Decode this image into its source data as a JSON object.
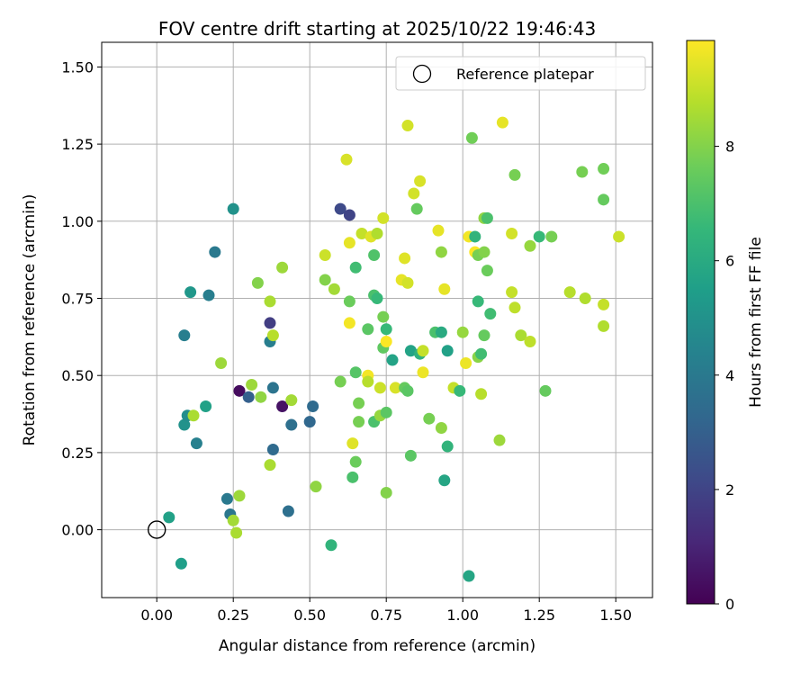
{
  "chart_data": {
    "type": "scatter",
    "title": "FOV centre drift starting at 2025/10/22 19:46:43",
    "xlabel": "Angular distance from reference (arcmin)",
    "ylabel": "Rotation from reference (arcmin)",
    "xlim": [
      -0.18,
      1.62
    ],
    "ylim": [
      -0.22,
      1.58
    ],
    "xticks": [
      0.0,
      0.25,
      0.5,
      0.75,
      1.0,
      1.25,
      1.5
    ],
    "yticks": [
      0.0,
      0.25,
      0.5,
      0.75,
      1.0,
      1.25,
      1.5
    ],
    "xtick_labels": [
      "0.00",
      "0.25",
      "0.50",
      "0.75",
      "1.00",
      "1.25",
      "1.50"
    ],
    "ytick_labels": [
      "0.00",
      "0.25",
      "0.50",
      "0.75",
      "1.00",
      "1.25",
      "1.50"
    ],
    "grid": true,
    "legend": {
      "label": "Reference platepar",
      "position": "top-right"
    },
    "reference": {
      "x": 0.0,
      "y": 0.0,
      "label": "Reference platepar"
    },
    "colorbar": {
      "label": "Hours from first FF file",
      "min": 0,
      "max": 9.85,
      "ticks": [
        0,
        2,
        4,
        6,
        8
      ],
      "colormap": "viridis"
    },
    "points": [
      {
        "x": 0.04,
        "y": 0.04,
        "c": 5.6
      },
      {
        "x": 0.08,
        "y": -0.11,
        "c": 5.5
      },
      {
        "x": 0.09,
        "y": 0.63,
        "c": 4.2
      },
      {
        "x": 0.09,
        "y": 0.34,
        "c": 5.0
      },
      {
        "x": 0.1,
        "y": 0.37,
        "c": 4.8
      },
      {
        "x": 0.11,
        "y": 0.77,
        "c": 5.2
      },
      {
        "x": 0.12,
        "y": 0.37,
        "c": 8.6
      },
      {
        "x": 0.13,
        "y": 0.28,
        "c": 4.3
      },
      {
        "x": 0.16,
        "y": 0.4,
        "c": 5.6
      },
      {
        "x": 0.17,
        "y": 0.76,
        "c": 4.2
      },
      {
        "x": 0.19,
        "y": 0.9,
        "c": 4.0
      },
      {
        "x": 0.21,
        "y": 0.54,
        "c": 8.4
      },
      {
        "x": 0.23,
        "y": 0.1,
        "c": 4.0
      },
      {
        "x": 0.24,
        "y": 0.05,
        "c": 3.9
      },
      {
        "x": 0.25,
        "y": 1.04,
        "c": 5.0
      },
      {
        "x": 0.25,
        "y": 0.03,
        "c": 8.5
      },
      {
        "x": 0.26,
        "y": -0.01,
        "c": 8.6
      },
      {
        "x": 0.27,
        "y": 0.45,
        "c": 0.3
      },
      {
        "x": 0.27,
        "y": 0.11,
        "c": 8.4
      },
      {
        "x": 0.3,
        "y": 0.43,
        "c": 3.0
      },
      {
        "x": 0.31,
        "y": 0.47,
        "c": 8.4
      },
      {
        "x": 0.33,
        "y": 0.8,
        "c": 8.0
      },
      {
        "x": 0.34,
        "y": 0.43,
        "c": 8.2
      },
      {
        "x": 0.37,
        "y": 0.67,
        "c": 1.8
      },
      {
        "x": 0.37,
        "y": 0.61,
        "c": 4.2
      },
      {
        "x": 0.37,
        "y": 0.21,
        "c": 8.6
      },
      {
        "x": 0.37,
        "y": 0.74,
        "c": 8.6
      },
      {
        "x": 0.38,
        "y": 0.63,
        "c": 8.8
      },
      {
        "x": 0.38,
        "y": 0.46,
        "c": 3.8
      },
      {
        "x": 0.38,
        "y": 0.26,
        "c": 3.4
      },
      {
        "x": 0.41,
        "y": 0.4,
        "c": 0.5
      },
      {
        "x": 0.41,
        "y": 0.85,
        "c": 8.4
      },
      {
        "x": 0.43,
        "y": 0.06,
        "c": 3.6
      },
      {
        "x": 0.44,
        "y": 0.42,
        "c": 8.5
      },
      {
        "x": 0.44,
        "y": 0.34,
        "c": 3.6
      },
      {
        "x": 0.5,
        "y": 0.35,
        "c": 3.3
      },
      {
        "x": 0.51,
        "y": 0.4,
        "c": 3.4
      },
      {
        "x": 0.52,
        "y": 0.14,
        "c": 8.2
      },
      {
        "x": 0.55,
        "y": 0.89,
        "c": 9.1
      },
      {
        "x": 0.55,
        "y": 0.81,
        "c": 8.0
      },
      {
        "x": 0.57,
        "y": -0.05,
        "c": 6.4
      },
      {
        "x": 0.58,
        "y": 0.78,
        "c": 8.5
      },
      {
        "x": 0.6,
        "y": 1.04,
        "c": 2.2
      },
      {
        "x": 0.6,
        "y": 0.48,
        "c": 7.8
      },
      {
        "x": 0.62,
        "y": 1.2,
        "c": 9.3
      },
      {
        "x": 0.63,
        "y": 1.02,
        "c": 2.0
      },
      {
        "x": 0.63,
        "y": 0.67,
        "c": 9.7
      },
      {
        "x": 0.63,
        "y": 0.93,
        "c": 9.5
      },
      {
        "x": 0.63,
        "y": 0.74,
        "c": 7.6
      },
      {
        "x": 0.64,
        "y": 0.17,
        "c": 7.0
      },
      {
        "x": 0.64,
        "y": 0.28,
        "c": 9.4
      },
      {
        "x": 0.65,
        "y": 0.85,
        "c": 6.8
      },
      {
        "x": 0.65,
        "y": 0.51,
        "c": 7.2
      },
      {
        "x": 0.65,
        "y": 0.22,
        "c": 7.6
      },
      {
        "x": 0.66,
        "y": 0.41,
        "c": 7.8
      },
      {
        "x": 0.66,
        "y": 0.35,
        "c": 7.8
      },
      {
        "x": 0.67,
        "y": 0.96,
        "c": 9.0
      },
      {
        "x": 0.69,
        "y": 0.65,
        "c": 7.3
      },
      {
        "x": 0.69,
        "y": 0.5,
        "c": 9.7
      },
      {
        "x": 0.69,
        "y": 0.48,
        "c": 8.8
      },
      {
        "x": 0.7,
        "y": 0.95,
        "c": 9.4
      },
      {
        "x": 0.71,
        "y": 0.89,
        "c": 7.1
      },
      {
        "x": 0.71,
        "y": 0.35,
        "c": 7.0
      },
      {
        "x": 0.71,
        "y": 0.76,
        "c": 7.0
      },
      {
        "x": 0.72,
        "y": 0.96,
        "c": 8.7
      },
      {
        "x": 0.72,
        "y": 0.75,
        "c": 6.6
      },
      {
        "x": 0.73,
        "y": 0.46,
        "c": 9.1
      },
      {
        "x": 0.73,
        "y": 0.37,
        "c": 8.3
      },
      {
        "x": 0.74,
        "y": 0.59,
        "c": 7.4
      },
      {
        "x": 0.74,
        "y": 1.01,
        "c": 9.2
      },
      {
        "x": 0.74,
        "y": 0.69,
        "c": 7.8
      },
      {
        "x": 0.75,
        "y": 0.61,
        "c": 9.8
      },
      {
        "x": 0.75,
        "y": 0.38,
        "c": 7.3
      },
      {
        "x": 0.75,
        "y": 0.65,
        "c": 6.6
      },
      {
        "x": 0.75,
        "y": 0.12,
        "c": 8.0
      },
      {
        "x": 0.77,
        "y": 0.55,
        "c": 5.7
      },
      {
        "x": 0.78,
        "y": 0.46,
        "c": 9.3
      },
      {
        "x": 0.8,
        "y": 0.81,
        "c": 9.5
      },
      {
        "x": 0.81,
        "y": 0.88,
        "c": 9.4
      },
      {
        "x": 0.81,
        "y": 0.46,
        "c": 7.5
      },
      {
        "x": 0.82,
        "y": 0.8,
        "c": 9.2
      },
      {
        "x": 0.82,
        "y": 1.31,
        "c": 9.2
      },
      {
        "x": 0.82,
        "y": 0.45,
        "c": 7.3
      },
      {
        "x": 0.83,
        "y": 0.58,
        "c": 5.7
      },
      {
        "x": 0.83,
        "y": 0.24,
        "c": 7.3
      },
      {
        "x": 0.84,
        "y": 1.09,
        "c": 9.2
      },
      {
        "x": 0.85,
        "y": 1.04,
        "c": 7.5
      },
      {
        "x": 0.86,
        "y": 1.13,
        "c": 9.3
      },
      {
        "x": 0.86,
        "y": 0.57,
        "c": 6.3
      },
      {
        "x": 0.87,
        "y": 0.51,
        "c": 9.6
      },
      {
        "x": 0.87,
        "y": 0.58,
        "c": 9.0
      },
      {
        "x": 0.89,
        "y": 0.36,
        "c": 7.8
      },
      {
        "x": 0.91,
        "y": 0.64,
        "c": 7.0
      },
      {
        "x": 0.92,
        "y": 0.97,
        "c": 9.5
      },
      {
        "x": 0.93,
        "y": 0.33,
        "c": 8.2
      },
      {
        "x": 0.93,
        "y": 0.64,
        "c": 6.0
      },
      {
        "x": 0.93,
        "y": 0.9,
        "c": 8.2
      },
      {
        "x": 0.94,
        "y": 0.78,
        "c": 9.5
      },
      {
        "x": 0.94,
        "y": 0.16,
        "c": 5.8
      },
      {
        "x": 0.95,
        "y": 0.58,
        "c": 5.6
      },
      {
        "x": 0.95,
        "y": 0.27,
        "c": 6.4
      },
      {
        "x": 0.97,
        "y": 0.46,
        "c": 9.0
      },
      {
        "x": 0.99,
        "y": 0.45,
        "c": 6.6
      },
      {
        "x": 1.0,
        "y": 0.64,
        "c": 8.3
      },
      {
        "x": 1.01,
        "y": 0.54,
        "c": 9.6
      },
      {
        "x": 1.02,
        "y": 0.95,
        "c": 9.7
      },
      {
        "x": 1.02,
        "y": -0.15,
        "c": 5.8
      },
      {
        "x": 1.03,
        "y": 1.27,
        "c": 7.7
      },
      {
        "x": 1.04,
        "y": 0.95,
        "c": 6.4
      },
      {
        "x": 1.04,
        "y": 0.9,
        "c": 9.8
      },
      {
        "x": 1.05,
        "y": 0.89,
        "c": 7.8
      },
      {
        "x": 1.05,
        "y": 0.74,
        "c": 6.6
      },
      {
        "x": 1.05,
        "y": 0.56,
        "c": 8.1
      },
      {
        "x": 1.06,
        "y": 0.57,
        "c": 6.8
      },
      {
        "x": 1.06,
        "y": 0.44,
        "c": 8.8
      },
      {
        "x": 1.07,
        "y": 1.01,
        "c": 8.2
      },
      {
        "x": 1.07,
        "y": 0.63,
        "c": 7.5
      },
      {
        "x": 1.07,
        "y": 0.9,
        "c": 8.0
      },
      {
        "x": 1.08,
        "y": 1.01,
        "c": 7.0
      },
      {
        "x": 1.08,
        "y": 0.84,
        "c": 7.6
      },
      {
        "x": 1.09,
        "y": 0.7,
        "c": 6.8
      },
      {
        "x": 1.12,
        "y": 0.29,
        "c": 8.4
      },
      {
        "x": 1.13,
        "y": 1.32,
        "c": 9.5
      },
      {
        "x": 1.16,
        "y": 0.96,
        "c": 9.2
      },
      {
        "x": 1.16,
        "y": 0.77,
        "c": 9.0
      },
      {
        "x": 1.17,
        "y": 1.15,
        "c": 7.8
      },
      {
        "x": 1.17,
        "y": 0.72,
        "c": 8.9
      },
      {
        "x": 1.19,
        "y": 0.63,
        "c": 8.6
      },
      {
        "x": 1.22,
        "y": 0.61,
        "c": 8.9
      },
      {
        "x": 1.22,
        "y": 0.92,
        "c": 8.3
      },
      {
        "x": 1.25,
        "y": 0.95,
        "c": 6.6
      },
      {
        "x": 1.27,
        "y": 0.45,
        "c": 7.5
      },
      {
        "x": 1.29,
        "y": 0.95,
        "c": 7.8
      },
      {
        "x": 1.35,
        "y": 0.77,
        "c": 8.8
      },
      {
        "x": 1.39,
        "y": 1.16,
        "c": 7.8
      },
      {
        "x": 1.4,
        "y": 0.75,
        "c": 8.7
      },
      {
        "x": 1.46,
        "y": 0.73,
        "c": 9.0
      },
      {
        "x": 1.46,
        "y": 0.66,
        "c": 8.7
      },
      {
        "x": 1.46,
        "y": 1.07,
        "c": 7.5
      },
      {
        "x": 1.46,
        "y": 1.17,
        "c": 7.7
      },
      {
        "x": 1.51,
        "y": 0.95,
        "c": 9.1
      }
    ]
  }
}
